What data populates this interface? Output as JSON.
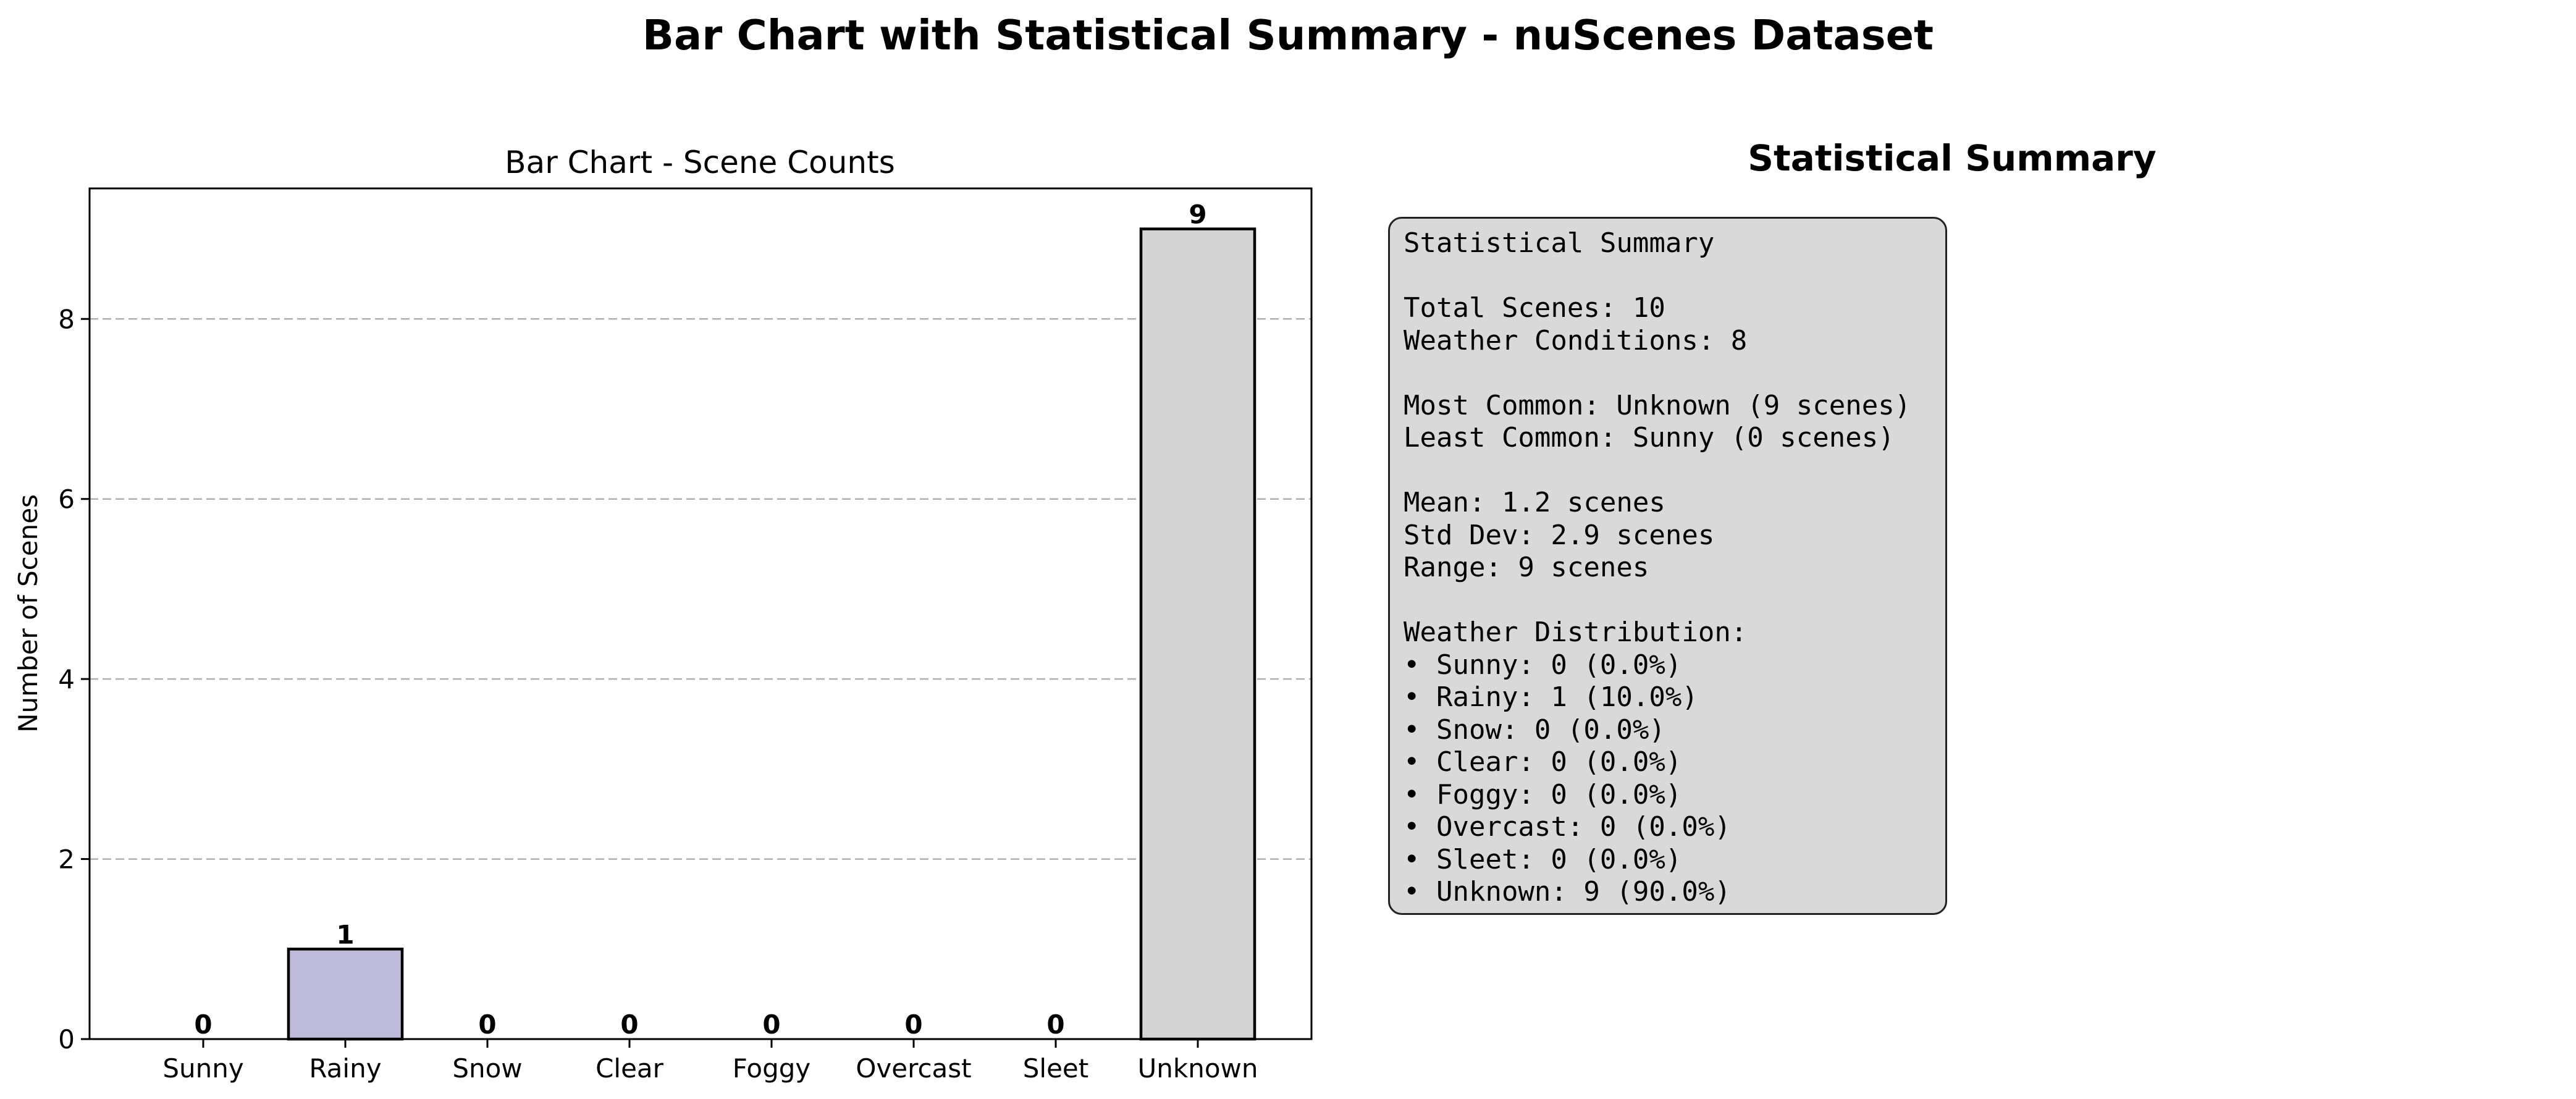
{
  "suptitle": "Bar Chart with Statistical Summary - nuScenes Dataset",
  "chart_data": {
    "type": "bar",
    "title": "Bar Chart - Scene Counts",
    "xlabel": "",
    "ylabel": "Number of Scenes",
    "categories": [
      "Sunny",
      "Rainy",
      "Snow",
      "Clear",
      "Foggy",
      "Overcast",
      "Sleet",
      "Unknown"
    ],
    "values": [
      0,
      1,
      0,
      0,
      0,
      0,
      0,
      9
    ],
    "bar_colors": [
      "#8dd3c7",
      "#bebada",
      "#fb8072",
      "#80b1d3",
      "#fdb462",
      "#b3de69",
      "#fccde5",
      "#d3d3d3"
    ],
    "edge_color": "#000000",
    "ylim": [
      0,
      9.45
    ],
    "yticks": [
      0,
      2,
      4,
      6,
      8
    ],
    "grid": "y-dashed",
    "data_labels": true
  },
  "summary": {
    "heading": "Statistical Summary",
    "lines": [
      "Statistical Summary",
      "",
      "Total Scenes: 10",
      "Weather Conditions: 8",
      "",
      "Most Common: Unknown (9 scenes)",
      "Least Common: Sunny (0 scenes)",
      "",
      "Mean: 1.2 scenes",
      "Std Dev: 2.9 scenes",
      "Range: 9 scenes",
      "",
      "Weather Distribution:",
      "• Sunny: 0 (0.0%)",
      "• Rainy: 1 (10.0%)",
      "• Snow: 0 (0.0%)",
      "• Clear: 0 (0.0%)",
      "• Foggy: 0 (0.0%)",
      "• Overcast: 0 (0.0%)",
      "• Sleet: 0 (0.0%)",
      "• Unknown: 9 (90.0%)"
    ]
  }
}
